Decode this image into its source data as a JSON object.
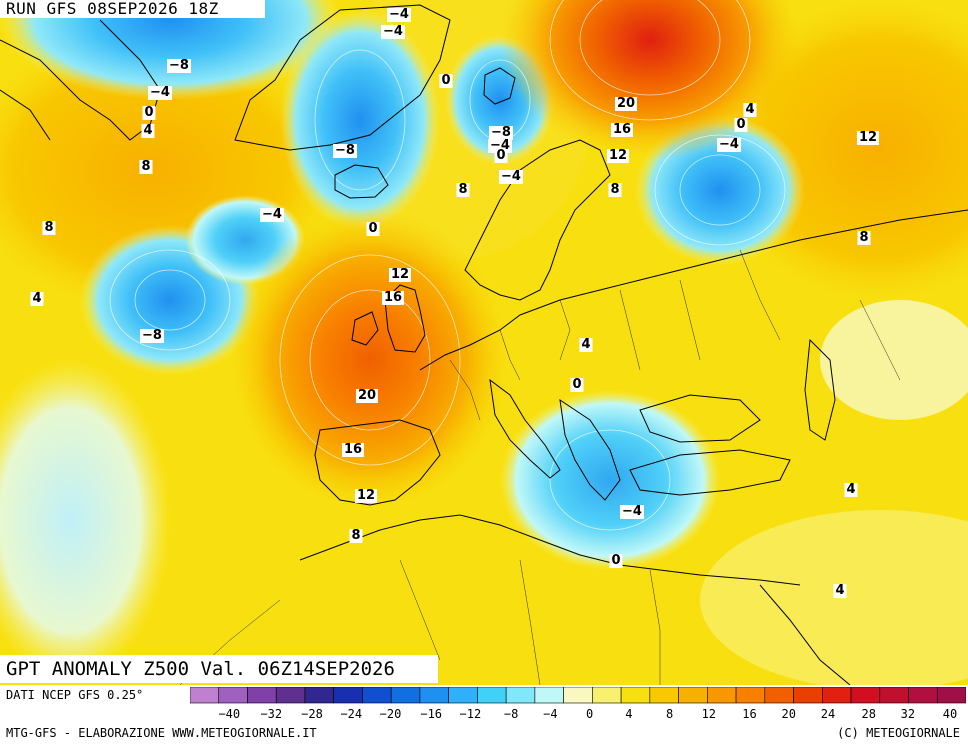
{
  "header": {
    "run_label": "RUN GFS 08SEP2026 18Z"
  },
  "title": {
    "text": "GPT ANOMALY Z500 Val. 06Z14SEP2026"
  },
  "footer": {
    "data_source": "DATI NCEP GFS 0.25°",
    "credits_left": "MTG-GFS - ELABORAZIONE WWW.METEOGIORNALE.IT",
    "credits_right": "(C) METEOGIORNALE"
  },
  "colorbar": {
    "tick_labels": [
      "-40",
      "-32",
      "-28",
      "-24",
      "-20",
      "-16",
      "-12",
      "-8",
      "-4",
      "0",
      "4",
      "8",
      "12",
      "16",
      "20",
      "24",
      "28",
      "32",
      "40"
    ],
    "colors": [
      "#c080d0",
      "#a060c0",
      "#8040a8",
      "#603090",
      "#302890",
      "#1830b0",
      "#1050d0",
      "#1070e0",
      "#2090f0",
      "#30b0f8",
      "#40d0f8",
      "#80e8f8",
      "#c0f8f8",
      "#f8f8c0",
      "#f8f070",
      "#f8e010",
      "#f8c800",
      "#f8b000",
      "#f89800",
      "#f88000",
      "#f06000",
      "#e84000",
      "#e02010",
      "#d01020",
      "#c01030",
      "#b01040",
      "#a01048"
    ]
  },
  "map_labels": [
    {
      "text": "-4",
      "pos": "greenland-top"
    },
    {
      "text": "-4",
      "pos": "greenland-top2"
    },
    {
      "text": "-8",
      "pos": "baffin"
    },
    {
      "text": "-4",
      "pos": "baffin2"
    },
    {
      "text": "0",
      "pos": "labrador"
    },
    {
      "text": "4",
      "pos": "labrador2"
    },
    {
      "text": "8",
      "pos": "labrador3"
    },
    {
      "text": "0",
      "pos": "greenland-sea"
    },
    {
      "text": "-8",
      "pos": "iceland"
    },
    {
      "text": "-8",
      "pos": "svalbard"
    },
    {
      "text": "-4",
      "pos": "svalbard2"
    },
    {
      "text": "0",
      "pos": "svalbard3"
    },
    {
      "text": "-4",
      "pos": "norway-n"
    },
    {
      "text": "8",
      "pos": "norway-sea"
    },
    {
      "text": "-4",
      "pos": "atlantic-n"
    },
    {
      "text": "0",
      "pos": "atlantic-c"
    },
    {
      "text": "8",
      "pos": "atlantic-w"
    },
    {
      "text": "4",
      "pos": "atlantic-w2"
    },
    {
      "text": "-8",
      "pos": "atlantic-low"
    },
    {
      "text": "12",
      "pos": "britain-n"
    },
    {
      "text": "16",
      "pos": "britain"
    },
    {
      "text": "20",
      "pos": "biscay"
    },
    {
      "text": "16",
      "pos": "iberia-n"
    },
    {
      "text": "12",
      "pos": "iberia"
    },
    {
      "text": "8",
      "pos": "morocco"
    },
    {
      "text": "20",
      "pos": "russia-n"
    },
    {
      "text": "16",
      "pos": "russia-n2"
    },
    {
      "text": "12",
      "pos": "russia-n3"
    },
    {
      "text": "8",
      "pos": "russia-w"
    },
    {
      "text": "4",
      "pos": "russia-c"
    },
    {
      "text": "0",
      "pos": "russia-c2"
    },
    {
      "text": "-4",
      "pos": "russia-low"
    },
    {
      "text": "12",
      "pos": "urals"
    },
    {
      "text": "8",
      "pos": "kazakh"
    },
    {
      "text": "4",
      "pos": "poland"
    },
    {
      "text": "0",
      "pos": "balkans"
    },
    {
      "text": "-4",
      "pos": "greece"
    },
    {
      "text": "0",
      "pos": "libya"
    },
    {
      "text": "4",
      "pos": "turkey"
    },
    {
      "text": "4",
      "pos": "egypt"
    }
  ]
}
